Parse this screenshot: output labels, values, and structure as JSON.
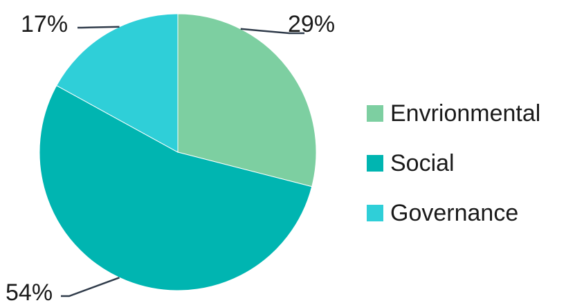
{
  "chart_data": {
    "type": "pie",
    "title": "",
    "categories": [
      "Envrionmental",
      "Social",
      "Governance"
    ],
    "values": [
      29,
      54,
      17
    ],
    "labels": [
      "29%",
      "54%",
      "17%"
    ],
    "colors": [
      "#7dcfa1",
      "#00b5b1",
      "#2fcfd8"
    ],
    "start_angle_deg": 0,
    "direction": "clockwise",
    "legend": {
      "position": "right",
      "entries": [
        "Envrionmental",
        "Social",
        "Governance"
      ]
    }
  }
}
